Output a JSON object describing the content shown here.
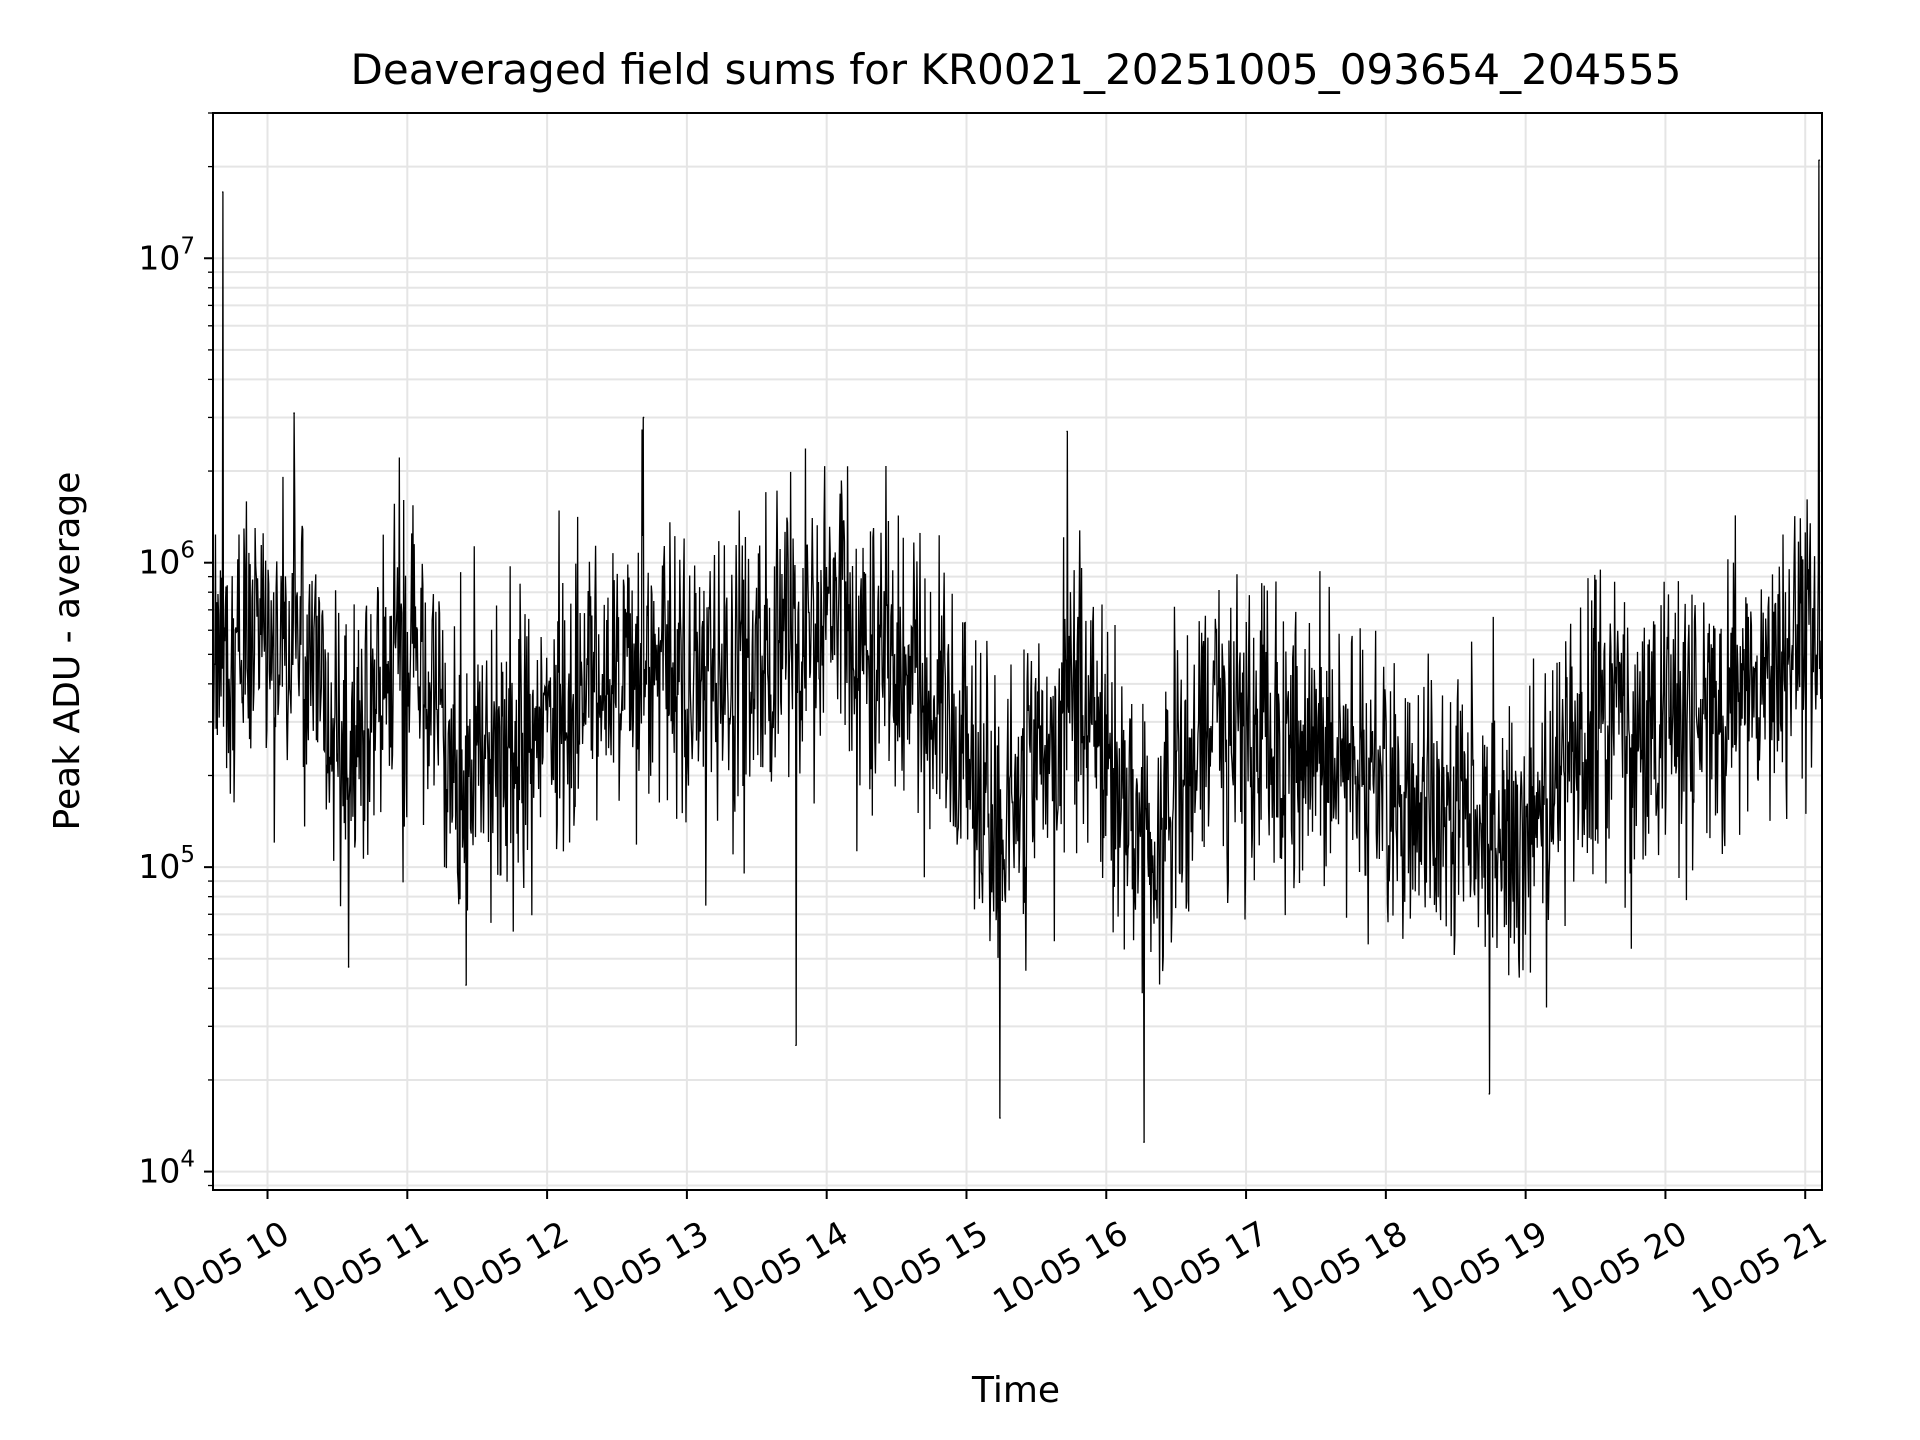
{
  "chart_data": {
    "type": "line",
    "title": "Deaveraged field sums for KR0021_20251005_093654_204555",
    "xlabel": "Time",
    "ylabel": "Peak ADU - average",
    "yscale": "log",
    "ylim": [
      8700,
      30000000
    ],
    "xlim_hours": [
      9.61,
      21.12
    ],
    "grid": true,
    "line_color": "#000000",
    "grid_color": "#e5e5e5",
    "x_ticks": [
      {
        "hour": 10,
        "label": "10-05 10"
      },
      {
        "hour": 11,
        "label": "10-05 11"
      },
      {
        "hour": 12,
        "label": "10-05 12"
      },
      {
        "hour": 13,
        "label": "10-05 13"
      },
      {
        "hour": 14,
        "label": "10-05 14"
      },
      {
        "hour": 15,
        "label": "10-05 15"
      },
      {
        "hour": 16,
        "label": "10-05 16"
      },
      {
        "hour": 17,
        "label": "10-05 17"
      },
      {
        "hour": 18,
        "label": "10-05 18"
      },
      {
        "hour": 19,
        "label": "10-05 19"
      },
      {
        "hour": 20,
        "label": "10-05 20"
      },
      {
        "hour": 21,
        "label": "10-05 21"
      }
    ],
    "y_ticks": [
      {
        "value": 10000,
        "base": "10",
        "exp": "4"
      },
      {
        "value": 100000,
        "base": "10",
        "exp": "5"
      },
      {
        "value": 1000000,
        "base": "10",
        "exp": "6"
      },
      {
        "value": 10000000,
        "base": "10",
        "exp": "7"
      }
    ],
    "series": [
      {
        "name": "Peak ADU - average",
        "x_start_hour": 9.61,
        "x_end_hour": 21.12,
        "typical_level_by_hour": [
          {
            "hour": 9.6,
            "value": 450000
          },
          {
            "hour": 10.2,
            "value": 600000
          },
          {
            "hour": 10.6,
            "value": 250000
          },
          {
            "hour": 11.0,
            "value": 600000
          },
          {
            "hour": 11.4,
            "value": 200000
          },
          {
            "hour": 12.0,
            "value": 300000
          },
          {
            "hour": 12.6,
            "value": 450000
          },
          {
            "hour": 13.2,
            "value": 400000
          },
          {
            "hour": 14.0,
            "value": 650000
          },
          {
            "hour": 14.6,
            "value": 450000
          },
          {
            "hour": 15.2,
            "value": 150000
          },
          {
            "hour": 15.8,
            "value": 400000
          },
          {
            "hour": 16.3,
            "value": 120000
          },
          {
            "hour": 16.8,
            "value": 300000
          },
          {
            "hour": 17.5,
            "value": 250000
          },
          {
            "hour": 18.3,
            "value": 160000
          },
          {
            "hour": 18.9,
            "value": 120000
          },
          {
            "hour": 19.4,
            "value": 250000
          },
          {
            "hour": 20.3,
            "value": 300000
          },
          {
            "hour": 20.9,
            "value": 550000
          },
          {
            "hour": 21.12,
            "value": 650000
          }
        ],
        "notable_points": [
          {
            "hour": 9.68,
            "value": 16500000
          },
          {
            "hour": 10.19,
            "value": 3100000
          },
          {
            "hour": 10.58,
            "value": 47000
          },
          {
            "hour": 11.42,
            "value": 41000
          },
          {
            "hour": 12.69,
            "value": 3000000
          },
          {
            "hour": 13.78,
            "value": 26000
          },
          {
            "hour": 15.24,
            "value": 15000
          },
          {
            "hour": 15.72,
            "value": 2700000
          },
          {
            "hour": 16.27,
            "value": 12500
          },
          {
            "hour": 18.74,
            "value": 18000
          },
          {
            "hour": 21.1,
            "value": 21000000
          }
        ]
      }
    ]
  }
}
